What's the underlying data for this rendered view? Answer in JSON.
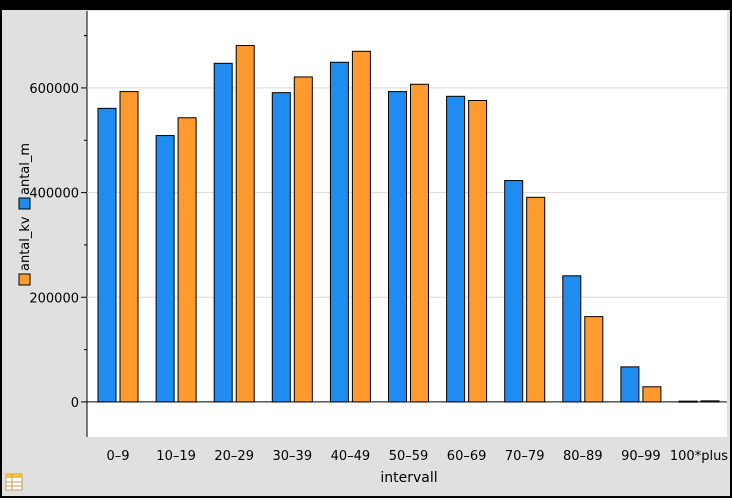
{
  "colors": {
    "series_a": "#1e8cf0",
    "series_b": "#ff9a2e",
    "panel_bg": "#e0e0e0",
    "plot_bg": "#ffffff",
    "frame": "#000000",
    "grid": "#d9d9d9"
  },
  "icons": {
    "table": "table-icon"
  },
  "chart_data": {
    "type": "bar",
    "xlabel": "intervall",
    "ylabel_series": [
      "antal_m",
      "antal_kv"
    ],
    "categories": [
      "0–9",
      "10–19",
      "20–29",
      "30–39",
      "40–49",
      "50–59",
      "60–69",
      "70–79",
      "80–89",
      "90–99",
      "100*plus"
    ],
    "series": [
      {
        "name": "antal_m",
        "color": "#1e8cf0",
        "values": [
          561000,
          509000,
          647000,
          591000,
          649000,
          593000,
          584000,
          423000,
          241000,
          67000,
          1500
        ]
      },
      {
        "name": "antal_kv",
        "color": "#ff9a2e",
        "values": [
          593000,
          543000,
          681000,
          621000,
          670000,
          607000,
          576000,
          391000,
          163000,
          29000,
          2000
        ]
      }
    ],
    "yticks": [
      0,
      200000,
      400000,
      600000
    ],
    "ytick_labels": [
      "0",
      "200000",
      "400000",
      "600000"
    ],
    "ylim": [
      -67000,
      747000
    ],
    "grid": true,
    "legend": "left vertical, rotated"
  }
}
